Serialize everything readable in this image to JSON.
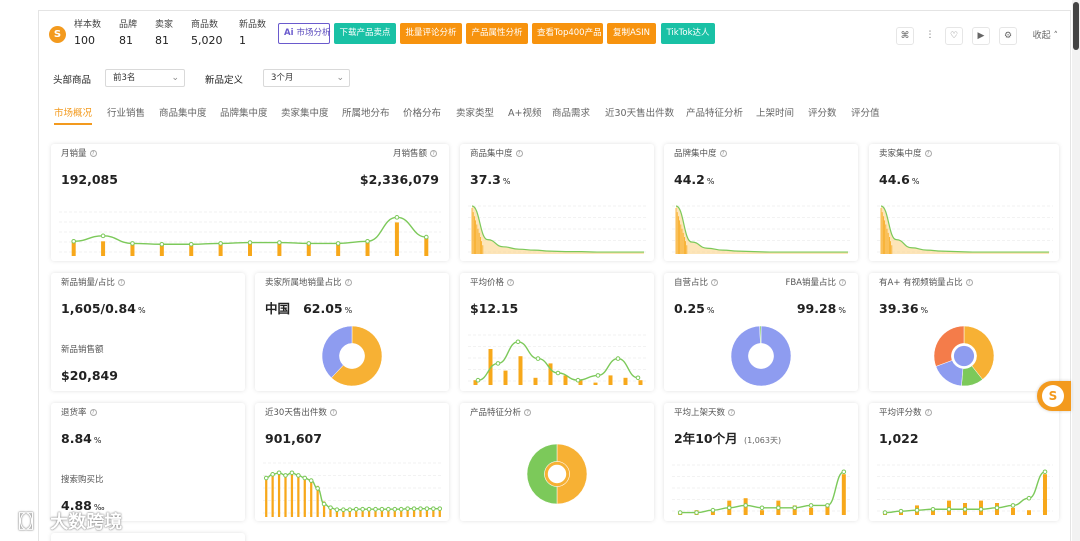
{
  "stats": [
    {
      "label": "样本数",
      "value": "100"
    },
    {
      "label": "品牌",
      "value": "81"
    },
    {
      "label": "卖家",
      "value": "81"
    },
    {
      "label": "商品数",
      "value": "5,020"
    },
    {
      "label": "新品数",
      "value": "1"
    }
  ],
  "actions": {
    "market": "市场分析",
    "download": "下载产品卖点",
    "reviews": "批量评论分析",
    "attributes": "产品属性分析",
    "top400": "查看Top400产品",
    "copy_asin": "复制ASIN",
    "tiktok": "TikTok达人"
  },
  "toolbar": {
    "collapse": "收起"
  },
  "filters": {
    "head_label": "头部商品",
    "head_value": "前3名",
    "new_label": "新品定义",
    "new_value": "3个月"
  },
  "tabs": [
    "市场概况",
    "行业销售",
    "商品集中度",
    "品牌集中度",
    "卖家集中度",
    "所属地分布",
    "价格分布",
    "卖家类型",
    "A+视频",
    "商品需求",
    "近30天售出件数",
    "产品特征分析",
    "上架时间",
    "评分数",
    "评分值"
  ],
  "cards": {
    "monthly_sales": {
      "title": "月销量",
      "value": "192,085",
      "title2": "月销售额",
      "value2": "$2,336,079"
    },
    "product_conc": {
      "title": "商品集中度",
      "value": "37.3",
      "unit": "%"
    },
    "brand_conc": {
      "title": "品牌集中度",
      "value": "44.2",
      "unit": "%"
    },
    "seller_conc": {
      "title": "卖家集中度",
      "value": "44.6",
      "unit": "%"
    },
    "new_sales": {
      "title": "新品销量/占比",
      "value": "1,605/0.84",
      "unit": "%",
      "title2": "新品销售额",
      "value2": "$20,849"
    },
    "seller_origin": {
      "title": "卖家所属地销量占比",
      "country": "中国",
      "value": "62.05",
      "unit": "%"
    },
    "avg_price": {
      "title": "平均价格",
      "value": "$12.15"
    },
    "self_fba": {
      "title": "自营占比",
      "value": "0.25",
      "unit": "%",
      "title2": "FBA销量占比",
      "value2": "99.28",
      "unit2": "%"
    },
    "aplus": {
      "title": "有A+ 有视频销量占比",
      "value": "39.36",
      "unit": "%"
    },
    "return_rate": {
      "title": "退货率",
      "value": "8.84",
      "unit": "%",
      "title2": "搜索购买比",
      "value2": "4.88",
      "unit2": "‰"
    },
    "sold30": {
      "title": "近30天售出件数",
      "value": "901,607"
    },
    "features": {
      "title": "产品特征分析"
    },
    "avg_days": {
      "title": "平均上架天数",
      "value": "2年10个月",
      "sub": "(1,063天)"
    },
    "avg_rating_count": {
      "title": "平均评分数",
      "value": "1,022"
    }
  },
  "colors": {
    "accent": "#f39a1e",
    "green": "#7cc95a",
    "blue": "#8e9cf0",
    "teal": "#19c1a5",
    "orange": "#f7930e"
  },
  "watermark": "大数跨境",
  "chart_data": [
    {
      "type": "bar",
      "name": "monthly_sales",
      "bars": [
        0.35,
        0.35,
        0.3,
        0.28,
        0.28,
        0.3,
        0.3,
        0.3,
        0.3,
        0.3,
        0.35,
        0.8,
        0.45
      ],
      "line": [
        0.35,
        0.48,
        0.3,
        0.28,
        0.28,
        0.3,
        0.32,
        0.32,
        0.3,
        0.3,
        0.35,
        0.92,
        0.45
      ]
    },
    {
      "type": "area",
      "name": "product_conc",
      "values": [
        1,
        0.3,
        0.15,
        0.1,
        0.08,
        0.06,
        0.05,
        0.05,
        0.04,
        0.04,
        0.04,
        0.04
      ]
    },
    {
      "type": "area",
      "name": "brand_conc",
      "values": [
        1,
        0.25,
        0.12,
        0.08,
        0.06,
        0.05,
        0.04,
        0.04,
        0.04,
        0.04,
        0.04,
        0.04
      ]
    },
    {
      "type": "area",
      "name": "seller_conc",
      "values": [
        1,
        0.3,
        0.13,
        0.08,
        0.06,
        0.05,
        0.04,
        0.04,
        0.04,
        0.04,
        0.04,
        0.04
      ]
    },
    {
      "type": "pie",
      "name": "seller_origin",
      "slices": [
        {
          "name": "中国",
          "value": 62.05,
          "color": "#f7b134"
        },
        {
          "name": "other",
          "value": 37.95,
          "color": "#8e9cf0"
        }
      ]
    },
    {
      "type": "bar",
      "name": "avg_price",
      "bars": [
        0.1,
        0.75,
        0.3,
        0.6,
        0.15,
        0.45,
        0.2,
        0.1,
        0.05,
        0.2,
        0.15,
        0.1
      ],
      "line": [
        0.1,
        0.45,
        0.9,
        0.55,
        0.25,
        0.1,
        0.2,
        0.55,
        0.15
      ]
    },
    {
      "type": "pie",
      "name": "self_fba",
      "slices": [
        {
          "name": "FBA",
          "value": 99.28,
          "color": "#8e9cf0"
        },
        {
          "name": "self",
          "value": 0.72,
          "color": "#7cc95a"
        }
      ]
    },
    {
      "type": "pie",
      "name": "aplus",
      "slices": [
        {
          "name": "a",
          "value": 39.36,
          "color": "#f7b134"
        },
        {
          "name": "b",
          "value": 12,
          "color": "#7cc95a"
        },
        {
          "name": "c",
          "value": 18,
          "color": "#8e9cf0"
        },
        {
          "name": "d",
          "value": 30.64,
          "color": "#f47c4a"
        }
      ]
    },
    {
      "type": "bar",
      "name": "sold30",
      "bars": [
        0.75,
        0.8,
        0.85,
        0.8,
        0.85,
        0.8,
        0.75,
        0.7,
        0.6,
        0.3,
        0.2,
        0.15,
        0.15,
        0.15,
        0.15,
        0.15,
        0.15,
        0.15,
        0.15,
        0.15,
        0.15,
        0.15,
        0.15,
        0.15,
        0.15,
        0.15,
        0.15,
        0.15
      ],
      "line": [
        0.75,
        0.82,
        0.85,
        0.8,
        0.85,
        0.8,
        0.75,
        0.7,
        0.55,
        0.25,
        0.18,
        0.14,
        0.14,
        0.14,
        0.15,
        0.15,
        0.15,
        0.15,
        0.15,
        0.15,
        0.15,
        0.15,
        0.16,
        0.16,
        0.16,
        0.16,
        0.16,
        0.16
      ]
    },
    {
      "type": "pie",
      "name": "features",
      "slices": [
        {
          "name": "a",
          "value": 50,
          "color": "#f7b134"
        },
        {
          "name": "b",
          "value": 50,
          "color": "#7cc95a"
        }
      ]
    },
    {
      "type": "bar",
      "name": "avg_days",
      "bars": [
        0.05,
        0.1,
        0.1,
        0.3,
        0.35,
        0.1,
        0.3,
        0.2,
        0.15,
        0.2,
        0.85
      ],
      "line": [
        0.05,
        0.05,
        0.1,
        0.15,
        0.2,
        0.15,
        0.15,
        0.15,
        0.2,
        0.2,
        0.9
      ]
    },
    {
      "type": "bar",
      "name": "avg_rating_count",
      "bars": [
        0.05,
        0.1,
        0.2,
        0.1,
        0.3,
        0.25,
        0.3,
        0.25,
        0.15,
        0.1,
        0.85
      ],
      "line": [
        0.05,
        0.08,
        0.1,
        0.12,
        0.12,
        0.12,
        0.12,
        0.15,
        0.2,
        0.35,
        0.9
      ]
    }
  ]
}
